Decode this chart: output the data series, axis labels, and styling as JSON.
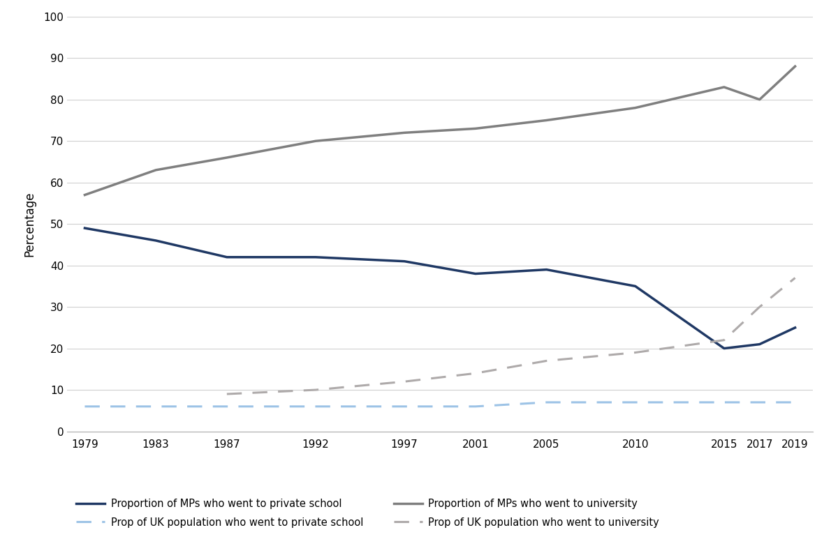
{
  "years": [
    1979,
    1983,
    1987,
    1992,
    1997,
    2001,
    2005,
    2010,
    2015,
    2017,
    2019
  ],
  "mp_private_school": [
    49,
    46,
    42,
    42,
    41,
    38,
    39,
    35,
    20,
    21,
    25
  ],
  "mp_university": [
    57,
    63,
    66,
    70,
    72,
    73,
    75,
    78,
    83,
    80,
    88
  ],
  "uk_private_school_x": [
    1979,
    1983,
    1987,
    1992,
    1997,
    2001,
    2005,
    2010,
    2015,
    2017,
    2019
  ],
  "uk_private_school_y": [
    6,
    6,
    6,
    6,
    6,
    6,
    7,
    7,
    7,
    7,
    7
  ],
  "uk_university_x": [
    1987,
    1992,
    1997,
    2001,
    2005,
    2010,
    2015,
    2017,
    2019
  ],
  "uk_university_y": [
    9,
    10,
    12,
    14,
    17,
    19,
    22,
    30,
    37
  ],
  "mp_private_color": "#1F3864",
  "mp_university_color": "#7F7F7F",
  "uk_private_color": "#9DC3E6",
  "uk_university_color": "#AEAAAA",
  "ylabel": "Percentage",
  "ylim": [
    0,
    100
  ],
  "yticks": [
    0,
    10,
    20,
    30,
    40,
    50,
    60,
    70,
    80,
    90,
    100
  ],
  "xlim_left": 1979,
  "xlim_right": 2019,
  "legend_labels": [
    "Proportion of MPs who went to private school",
    "Prop of UK population who went to private school",
    "Proportion of MPs who went to university",
    "Prop of UK population who went to university"
  ],
  "background_color": "#ffffff"
}
